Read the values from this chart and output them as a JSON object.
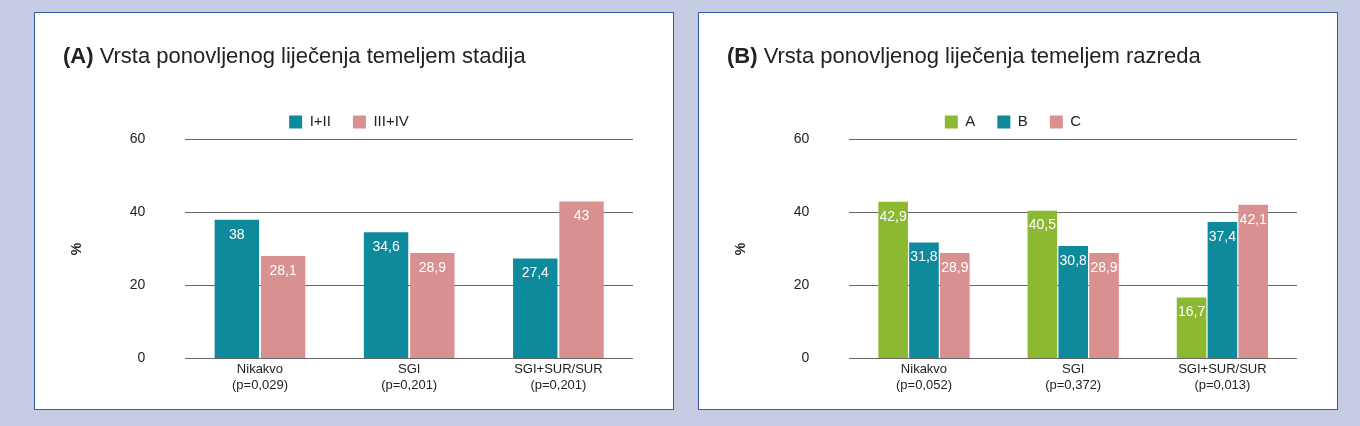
{
  "chart_data": [
    {
      "type": "bar",
      "title": "(A) Vrsta ponovljenog liječenja temeljem stadija",
      "ylabel": "%",
      "categories": [
        "Nikakvo\n(p=0,029)",
        "SGI\n(p=0,201)",
        "SGI+SUR/SUR\n(p=0,201)"
      ],
      "ylim": [
        0,
        60
      ],
      "yticks": [
        0,
        20,
        40,
        60
      ],
      "grid": "y",
      "legend": "top",
      "series": [
        {
          "name": "I+II",
          "color": "#0f8a9d",
          "values": [
            38,
            34.6,
            27.4
          ],
          "value_labels": [
            "38",
            "34,6",
            "27,4"
          ]
        },
        {
          "name": "III+IV",
          "color": "#d99090",
          "values": [
            28.1,
            28.9,
            43
          ],
          "value_labels": [
            "28,1",
            "28,9",
            "43"
          ]
        }
      ]
    },
    {
      "type": "bar",
      "title": "(B) Vrsta ponovljenog liječenja temeljem razreda",
      "ylabel": "%",
      "categories": [
        "Nikakvo\n(p=0,052)",
        "SGI\n(p=0,372)",
        "SGI+SUR/SUR\n(p=0,013)"
      ],
      "ylim": [
        0,
        60
      ],
      "yticks": [
        0,
        20,
        40,
        60
      ],
      "grid": "y",
      "legend": "top",
      "series": [
        {
          "name": "A",
          "color": "#8cb832",
          "values": [
            42.9,
            40.5,
            16.7
          ],
          "value_labels": [
            "42,9",
            "40,5",
            "16,7"
          ]
        },
        {
          "name": "B",
          "color": "#0f8a9d",
          "values": [
            31.8,
            30.8,
            37.4
          ],
          "value_labels": [
            "31,8",
            "30,8",
            "37,4"
          ]
        },
        {
          "name": "C",
          "color": "#d99090",
          "values": [
            28.9,
            28.9,
            42.1
          ],
          "value_labels": [
            "28,9",
            "28,9",
            "42,1"
          ]
        }
      ]
    }
  ]
}
